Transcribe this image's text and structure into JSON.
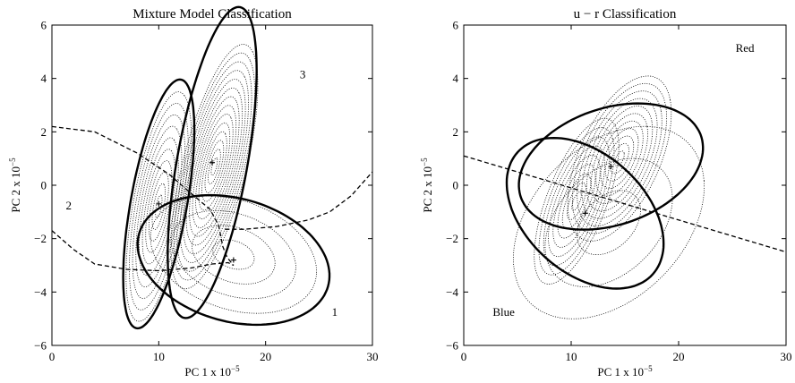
{
  "chart_data": [
    {
      "type": "contour",
      "title": "Mixture Model Classification",
      "xlabel": "PC 1 x 10",
      "xlabel_exp": "−5",
      "ylabel": "PC 2 x 10",
      "ylabel_exp": "−5",
      "xlim": [
        0,
        30
      ],
      "ylim": [
        -6,
        6
      ],
      "xticks": [
        0,
        10,
        20,
        30
      ],
      "yticks": [
        -6,
        -4,
        -2,
        0,
        2,
        4,
        6
      ],
      "xticklabels": [
        "0",
        "10",
        "20",
        "30"
      ],
      "yticklabels": [
        "−6",
        "−4",
        "−2",
        "0",
        "2",
        "4",
        "6"
      ],
      "annotations": [
        {
          "text": "3",
          "x": 23.2,
          "y": 4.0
        },
        {
          "text": "2",
          "x": 1.3,
          "y": -0.9
        },
        {
          "text": "1",
          "x": 26.2,
          "y": -4.9
        }
      ],
      "components": [
        {
          "label": "1",
          "center": [
            17.0,
            -2.8
          ],
          "semi_x": 9.0,
          "semi_y": 2.35,
          "angle_deg": -4
        },
        {
          "label": "2",
          "center": [
            10.0,
            -0.7
          ],
          "semi_x": 5.2,
          "semi_y": 2.4,
          "angle_deg": 60
        },
        {
          "label": "3",
          "center": [
            15.0,
            0.85
          ],
          "semi_x": 6.5,
          "semi_y": 3.0,
          "angle_deg": 60
        }
      ],
      "density_peaks": [
        {
          "center": [
            15.2,
            0.7
          ],
          "semi_x": 5.6,
          "semi_y": 2.5,
          "angle_deg": 50,
          "levels": 14
        },
        {
          "center": [
            10.0,
            -0.8
          ],
          "semi_x": 4.8,
          "semi_y": 2.2,
          "angle_deg": 60,
          "levels": 10
        },
        {
          "center": [
            17.0,
            -2.6
          ],
          "semi_x": 7.8,
          "semi_y": 2.1,
          "angle_deg": -5,
          "levels": 4
        }
      ],
      "boundaries": [
        {
          "x": [
            0,
            4,
            8,
            11,
            13,
            14.8,
            15.6,
            16.0,
            16.4,
            17.0
          ],
          "y": [
            2.2,
            2.0,
            1.2,
            0.4,
            -0.3,
            -0.9,
            -1.5,
            -2.3,
            -2.7,
            -3.0
          ]
        },
        {
          "x": [
            0,
            2,
            4,
            7,
            10,
            13,
            15,
            16.5,
            17.0
          ],
          "y": [
            -1.7,
            -2.4,
            -2.95,
            -3.15,
            -3.2,
            -3.1,
            -2.95,
            -2.9,
            -3.0
          ]
        },
        {
          "x": [
            16.2,
            18,
            21,
            24,
            26,
            28,
            30
          ],
          "y": [
            -1.65,
            -1.65,
            -1.55,
            -1.3,
            -1.0,
            -0.4,
            0.5
          ]
        }
      ]
    },
    {
      "type": "contour",
      "title": "u − r Classification",
      "xlabel": "PC 1 x 10",
      "xlabel_exp": "−5",
      "ylabel": "PC 2 x 10",
      "ylabel_exp": "−5",
      "xlim": [
        0,
        30
      ],
      "ylim": [
        -6,
        6
      ],
      "xticks": [
        0,
        10,
        20,
        30
      ],
      "yticks": [
        -6,
        -4,
        -2,
        0,
        2,
        4,
        6
      ],
      "xticklabels": [
        "0",
        "10",
        "20",
        "30"
      ],
      "yticklabels": [
        "−6",
        "−4",
        "−2",
        "0",
        "2",
        "4",
        "6"
      ],
      "annotations": [
        {
          "text": "Red",
          "x": 25.3,
          "y": 5.0
        },
        {
          "text": "Blue",
          "x": 2.7,
          "y": -4.9
        }
      ],
      "components": [
        {
          "label": "Red",
          "center": [
            13.7,
            0.7
          ],
          "semi_x": 8.6,
          "semi_y": 2.25,
          "angle_deg": 5
        },
        {
          "label": "Blue",
          "center": [
            11.3,
            -1.05
          ],
          "semi_x": 7.4,
          "semi_y": 2.55,
          "angle_deg": -10
        }
      ],
      "density_peaks": [
        {
          "center": [
            14.5,
            1.0
          ],
          "semi_x": 5.2,
          "semi_y": 2.4,
          "angle_deg": 25,
          "levels": 11
        },
        {
          "center": [
            10.5,
            -0.6
          ],
          "semi_x": 4.6,
          "semi_y": 2.0,
          "angle_deg": 35,
          "levels": 9
        },
        {
          "center": [
            13.5,
            -1.4
          ],
          "semi_x": 9.0,
          "semi_y": 3.3,
          "angle_deg": 10,
          "levels": 3
        }
      ],
      "boundaries": [
        {
          "x": [
            0,
            30
          ],
          "y": [
            1.1,
            -2.5
          ]
        }
      ]
    }
  ]
}
